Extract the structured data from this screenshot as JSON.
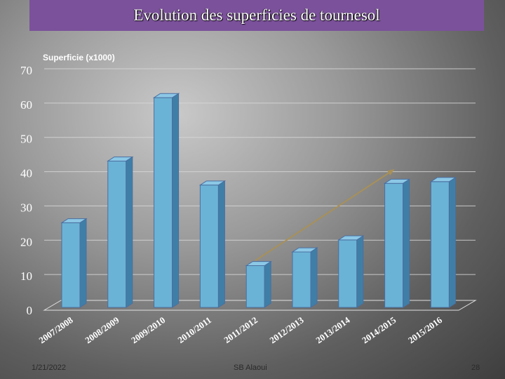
{
  "slide": {
    "title": "Evolution des superficies de tournesol",
    "footer_date": "1/21/2022",
    "footer_author": "SB Alaoui",
    "footer_page": "28"
  },
  "colors": {
    "title_bg": "#7b519b",
    "bar_front": "#6bb3d6",
    "bar_side": "#3f7fa7",
    "bar_top": "#8cc8e6",
    "trend_arrow": "#a89058"
  },
  "chart_data": {
    "type": "bar",
    "ylabel": "Superficie (x1000)",
    "ylim": [
      0,
      70
    ],
    "yticks": [
      0,
      10,
      20,
      30,
      40,
      50,
      60,
      70
    ],
    "grid": true,
    "categories": [
      "2007/2008",
      "2008/2009",
      "2009/2010",
      "2010/2011",
      "2011/2012",
      "2012/2013",
      "2013/2014",
      "2014/2015",
      "2015/2016"
    ],
    "values": [
      25.5,
      43.5,
      62,
      36.5,
      13,
      17,
      20.5,
      37,
      37.5
    ],
    "annotations": [
      {
        "type": "arrow",
        "from_category": "2011/2012",
        "from_value": 14.5,
        "to_category": "2014/2015",
        "to_value": 41
      }
    ]
  }
}
